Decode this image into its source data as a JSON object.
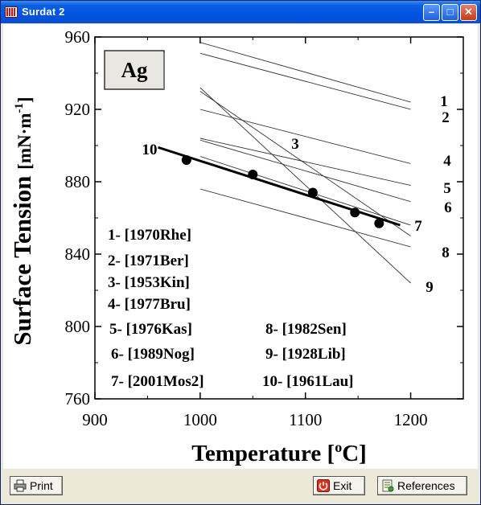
{
  "window": {
    "title": "Surdat 2"
  },
  "chart_data": {
    "type": "line",
    "material": "Ag",
    "xlabel": "Temperature",
    "xlabel_unit": "C",
    "ylabel": "Surface Tension",
    "ylabel_unit": "mN·m",
    "xlim": [
      900,
      1250
    ],
    "ylim": [
      760,
      960
    ],
    "xticks": [
      900,
      1000,
      1100,
      1200
    ],
    "yticks": [
      760,
      800,
      840,
      880,
      920,
      960
    ],
    "series": [
      {
        "name": "1",
        "x": [
          1000,
          1200
        ],
        "y": [
          957,
          924
        ]
      },
      {
        "name": "2",
        "x": [
          1000,
          1200
        ],
        "y": [
          951,
          920
        ]
      },
      {
        "name": "3",
        "x": [
          1000,
          1200
        ],
        "y": [
          932,
          824
        ]
      },
      {
        "name": "4",
        "x": [
          1000,
          1200
        ],
        "y": [
          920,
          890
        ]
      },
      {
        "name": "5",
        "x": [
          1000,
          1200
        ],
        "y": [
          904,
          878
        ]
      },
      {
        "name": "6",
        "x": [
          1000,
          1200
        ],
        "y": [
          903,
          869
        ]
      },
      {
        "name": "7",
        "x": [
          960,
          1190
        ],
        "y": [
          899,
          856
        ]
      },
      {
        "name": "8",
        "x": [
          1000,
          1200
        ],
        "y": [
          876,
          844
        ]
      },
      {
        "name": "9",
        "x": [
          1000,
          1200
        ],
        "y": [
          930,
          850
        ]
      },
      {
        "name": "10",
        "x": [
          1000,
          1200
        ],
        "y": [
          894,
          856
        ]
      }
    ],
    "points": {
      "series": "7",
      "x": [
        987,
        1050,
        1107,
        1147,
        1170
      ],
      "y": [
        892,
        884,
        874,
        863,
        857
      ]
    },
    "line_labels": [
      "1",
      "2",
      "3",
      "4",
      "5",
      "6",
      "7",
      "8",
      "9",
      "10"
    ],
    "legend": [
      "1- [1970Rhe]",
      "2- [1971Ber]",
      "3- [1953Kin]",
      "4- [1977Bru]",
      "5- [1976Kas]",
      "6- [1989Nog]",
      "7- [2001Mos2]",
      "8- [1982Sen]",
      "9- [1928Lib]",
      "10- [1961Lau]"
    ]
  },
  "toolbar": {
    "print_label": "Print",
    "exit_label": "Exit",
    "references_label": "References"
  }
}
